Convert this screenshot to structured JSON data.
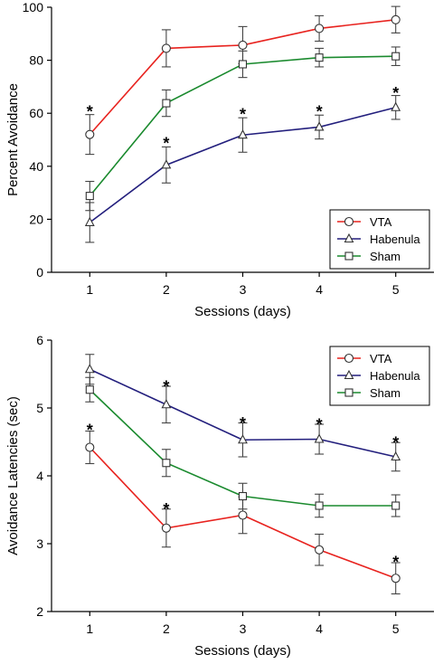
{
  "chart_data": [
    {
      "type": "line",
      "xlabel": "Sessions (days)",
      "ylabel": "Percent Avoidance",
      "x": [
        1,
        2,
        3,
        4,
        5
      ],
      "xlim": [
        0.5,
        5.5
      ],
      "ylim": [
        0,
        100
      ],
      "yticks": [
        0,
        20,
        40,
        60,
        80,
        100
      ],
      "legend_position": "lower-right",
      "series": [
        {
          "name": "VTA",
          "color": "#e8231f",
          "marker": "circle",
          "values": [
            52,
            84.5,
            85.7,
            92,
            95.3
          ],
          "errors": [
            7.5,
            7,
            7,
            4.8,
            5
          ]
        },
        {
          "name": "Habenula",
          "color": "#231f7d",
          "marker": "triangle",
          "values": [
            18.8,
            40.5,
            51.8,
            54.8,
            62.2
          ],
          "errors": [
            7.5,
            6.8,
            6.5,
            4.5,
            4.5
          ]
        },
        {
          "name": "Sham",
          "color": "#1a8a2e",
          "marker": "square",
          "values": [
            28.8,
            63.8,
            78.5,
            81,
            81.5
          ],
          "errors": [
            5.5,
            5,
            5,
            3.5,
            3.5
          ]
        }
      ],
      "annotations": [
        {
          "text": "*",
          "x": 1,
          "y": 62
        },
        {
          "text": "*",
          "x": 2,
          "y": 50
        },
        {
          "text": "*",
          "x": 3,
          "y": 61
        },
        {
          "text": "*",
          "x": 4,
          "y": 62
        },
        {
          "text": "*",
          "x": 5,
          "y": 69
        }
      ]
    },
    {
      "type": "line",
      "xlabel": "Sessions (days)",
      "ylabel": "Avoidance Latencies (sec)",
      "x": [
        1,
        2,
        3,
        4,
        5
      ],
      "xlim": [
        0.5,
        5.5
      ],
      "ylim": [
        2,
        6
      ],
      "yticks": [
        2,
        3,
        4,
        5,
        6
      ],
      "legend_position": "top-right",
      "series": [
        {
          "name": "VTA",
          "color": "#e8231f",
          "marker": "circle",
          "values": [
            4.42,
            3.23,
            3.42,
            2.91,
            2.49
          ],
          "errors": [
            0.24,
            0.28,
            0.27,
            0.23,
            0.23
          ]
        },
        {
          "name": "Habenula",
          "color": "#231f7d",
          "marker": "triangle",
          "values": [
            5.57,
            5.05,
            4.53,
            4.54,
            4.28
          ],
          "errors": [
            0.22,
            0.27,
            0.25,
            0.22,
            0.21
          ]
        },
        {
          "name": "Sham",
          "color": "#1a8a2e",
          "marker": "square",
          "values": [
            5.27,
            4.19,
            3.7,
            3.56,
            3.56
          ],
          "errors": [
            0.18,
            0.2,
            0.19,
            0.17,
            0.16
          ]
        }
      ],
      "annotations": [
        {
          "text": "*",
          "x": 1,
          "y": 4.73
        },
        {
          "text": "*",
          "x": 2,
          "y": 5.37
        },
        {
          "text": "*",
          "x": 3,
          "y": 4.83
        },
        {
          "text": "*",
          "x": 4,
          "y": 4.81
        },
        {
          "text": "*",
          "x": 5,
          "y": 4.54
        },
        {
          "text": "*",
          "x": 2,
          "y": 3.56
        },
        {
          "text": "*",
          "x": 5,
          "y": 2.78
        }
      ]
    }
  ]
}
